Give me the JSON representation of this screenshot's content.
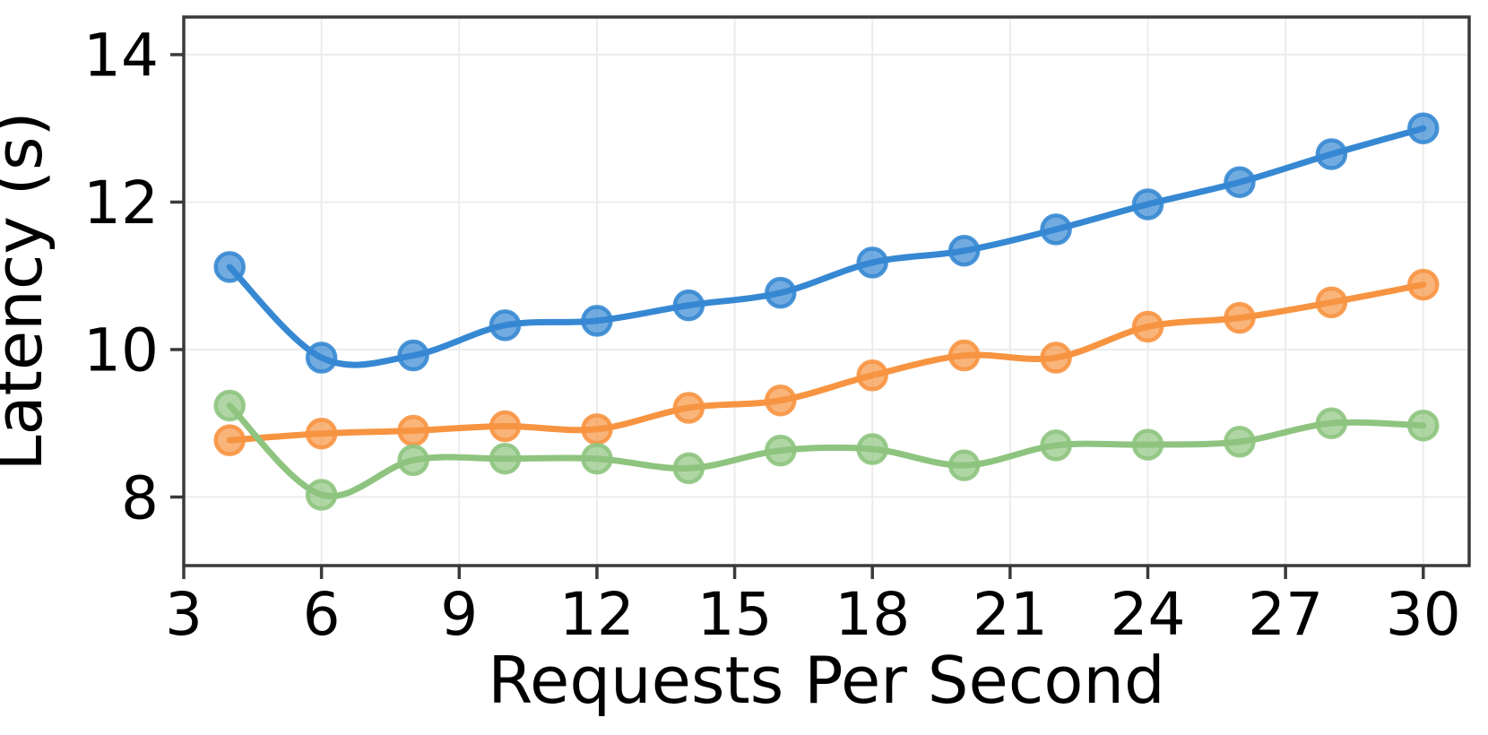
{
  "chart_data": {
    "type": "line",
    "title": "",
    "xlabel": "Requests Per Second",
    "ylabel": "Latency (s)",
    "x": [
      4,
      6,
      8,
      10,
      12,
      14,
      16,
      18,
      20,
      22,
      24,
      26,
      28,
      30
    ],
    "series": [
      {
        "name": "blue-series",
        "color": "#3688D3",
        "values": [
          11.12,
          9.89,
          9.92,
          10.33,
          10.39,
          10.6,
          10.77,
          11.18,
          11.34,
          11.63,
          11.97,
          12.27,
          12.65,
          13.0
        ]
      },
      {
        "name": "orange-series",
        "color": "#F79441",
        "values": [
          8.77,
          8.86,
          8.9,
          8.96,
          8.92,
          9.21,
          9.31,
          9.65,
          9.92,
          9.89,
          10.31,
          10.43,
          10.64,
          10.88
        ]
      },
      {
        "name": "green-series",
        "color": "#8EC47F",
        "values": [
          9.24,
          8.03,
          8.5,
          8.52,
          8.52,
          8.39,
          8.63,
          8.65,
          8.43,
          8.7,
          8.71,
          8.75,
          9.0,
          8.97
        ]
      }
    ],
    "xticks": [
      3,
      6,
      9,
      12,
      15,
      18,
      21,
      24,
      27,
      30
    ],
    "yticks": [
      8,
      10,
      12,
      14
    ],
    "xlim": [
      3,
      31
    ],
    "ylim": [
      7.07,
      14.51
    ],
    "grid": true,
    "legend": false,
    "grid_color": "#ececec",
    "spine_color": "#3a3a3a"
  }
}
